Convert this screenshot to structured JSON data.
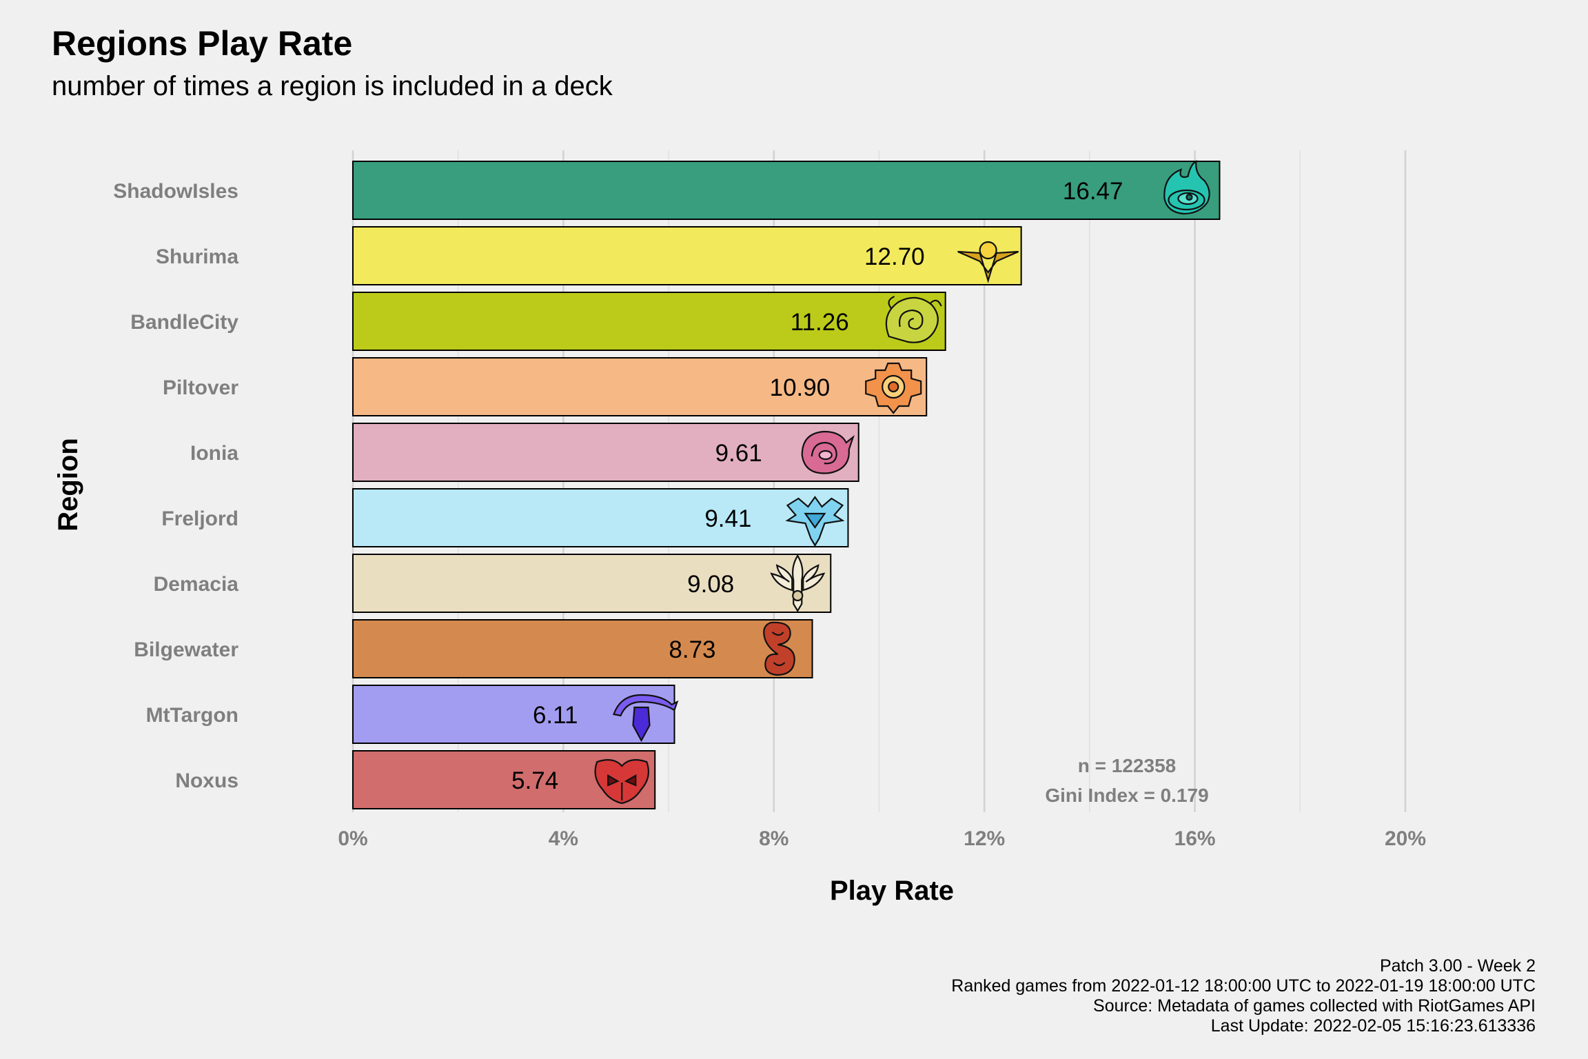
{
  "chart_data": {
    "type": "bar",
    "orientation": "horizontal",
    "title": "Regions Play Rate",
    "subtitle": "number of times a region is included in a deck",
    "xlabel": "Play Rate",
    "ylabel": "Region",
    "xlim": [
      0,
      20
    ],
    "x_ticks": [
      0,
      4,
      8,
      12,
      16,
      20
    ],
    "x_tick_labels": [
      "0%",
      "4%",
      "8%",
      "12%",
      "16%",
      "20%"
    ],
    "grid": true,
    "legend": "none",
    "categories": [
      "ShadowIsles",
      "Shurima",
      "BandleCity",
      "Piltover",
      "Ionia",
      "Freljord",
      "Demacia",
      "Bilgewater",
      "MtTargon",
      "Noxus"
    ],
    "values": [
      16.47,
      12.7,
      11.26,
      10.9,
      9.61,
      9.41,
      9.08,
      8.73,
      6.11,
      5.74
    ],
    "value_labels": [
      "16.47",
      "12.70",
      "11.26",
      "10.90",
      "9.61",
      "9.41",
      "9.08",
      "8.73",
      "6.11",
      "5.74"
    ],
    "colors": [
      "#389e7e",
      "#f2e95c",
      "#bccb1a",
      "#f6b986",
      "#e2afc0",
      "#b9e9f7",
      "#e9dec0",
      "#d48a4f",
      "#a39df1",
      "#d16d6d"
    ],
    "icons": [
      "shadow-isles-icon",
      "shurima-icon",
      "bandle-city-icon",
      "piltover-icon",
      "ionia-icon",
      "freljord-icon",
      "demacia-icon",
      "bilgewater-icon",
      "mt-targon-icon",
      "noxus-icon"
    ],
    "annotations": [
      "n = 122358",
      "Gini Index = 0.179"
    ]
  },
  "caption": [
    "Patch 3.00 - Week 2",
    "Ranked games from 2022-01-12 18:00:00 UTC to 2022-01-19 18:00:00 UTC",
    "Source: Metadata of games collected with RiotGames API",
    "Last Update: 2022-02-05 15:16:23.613336"
  ]
}
